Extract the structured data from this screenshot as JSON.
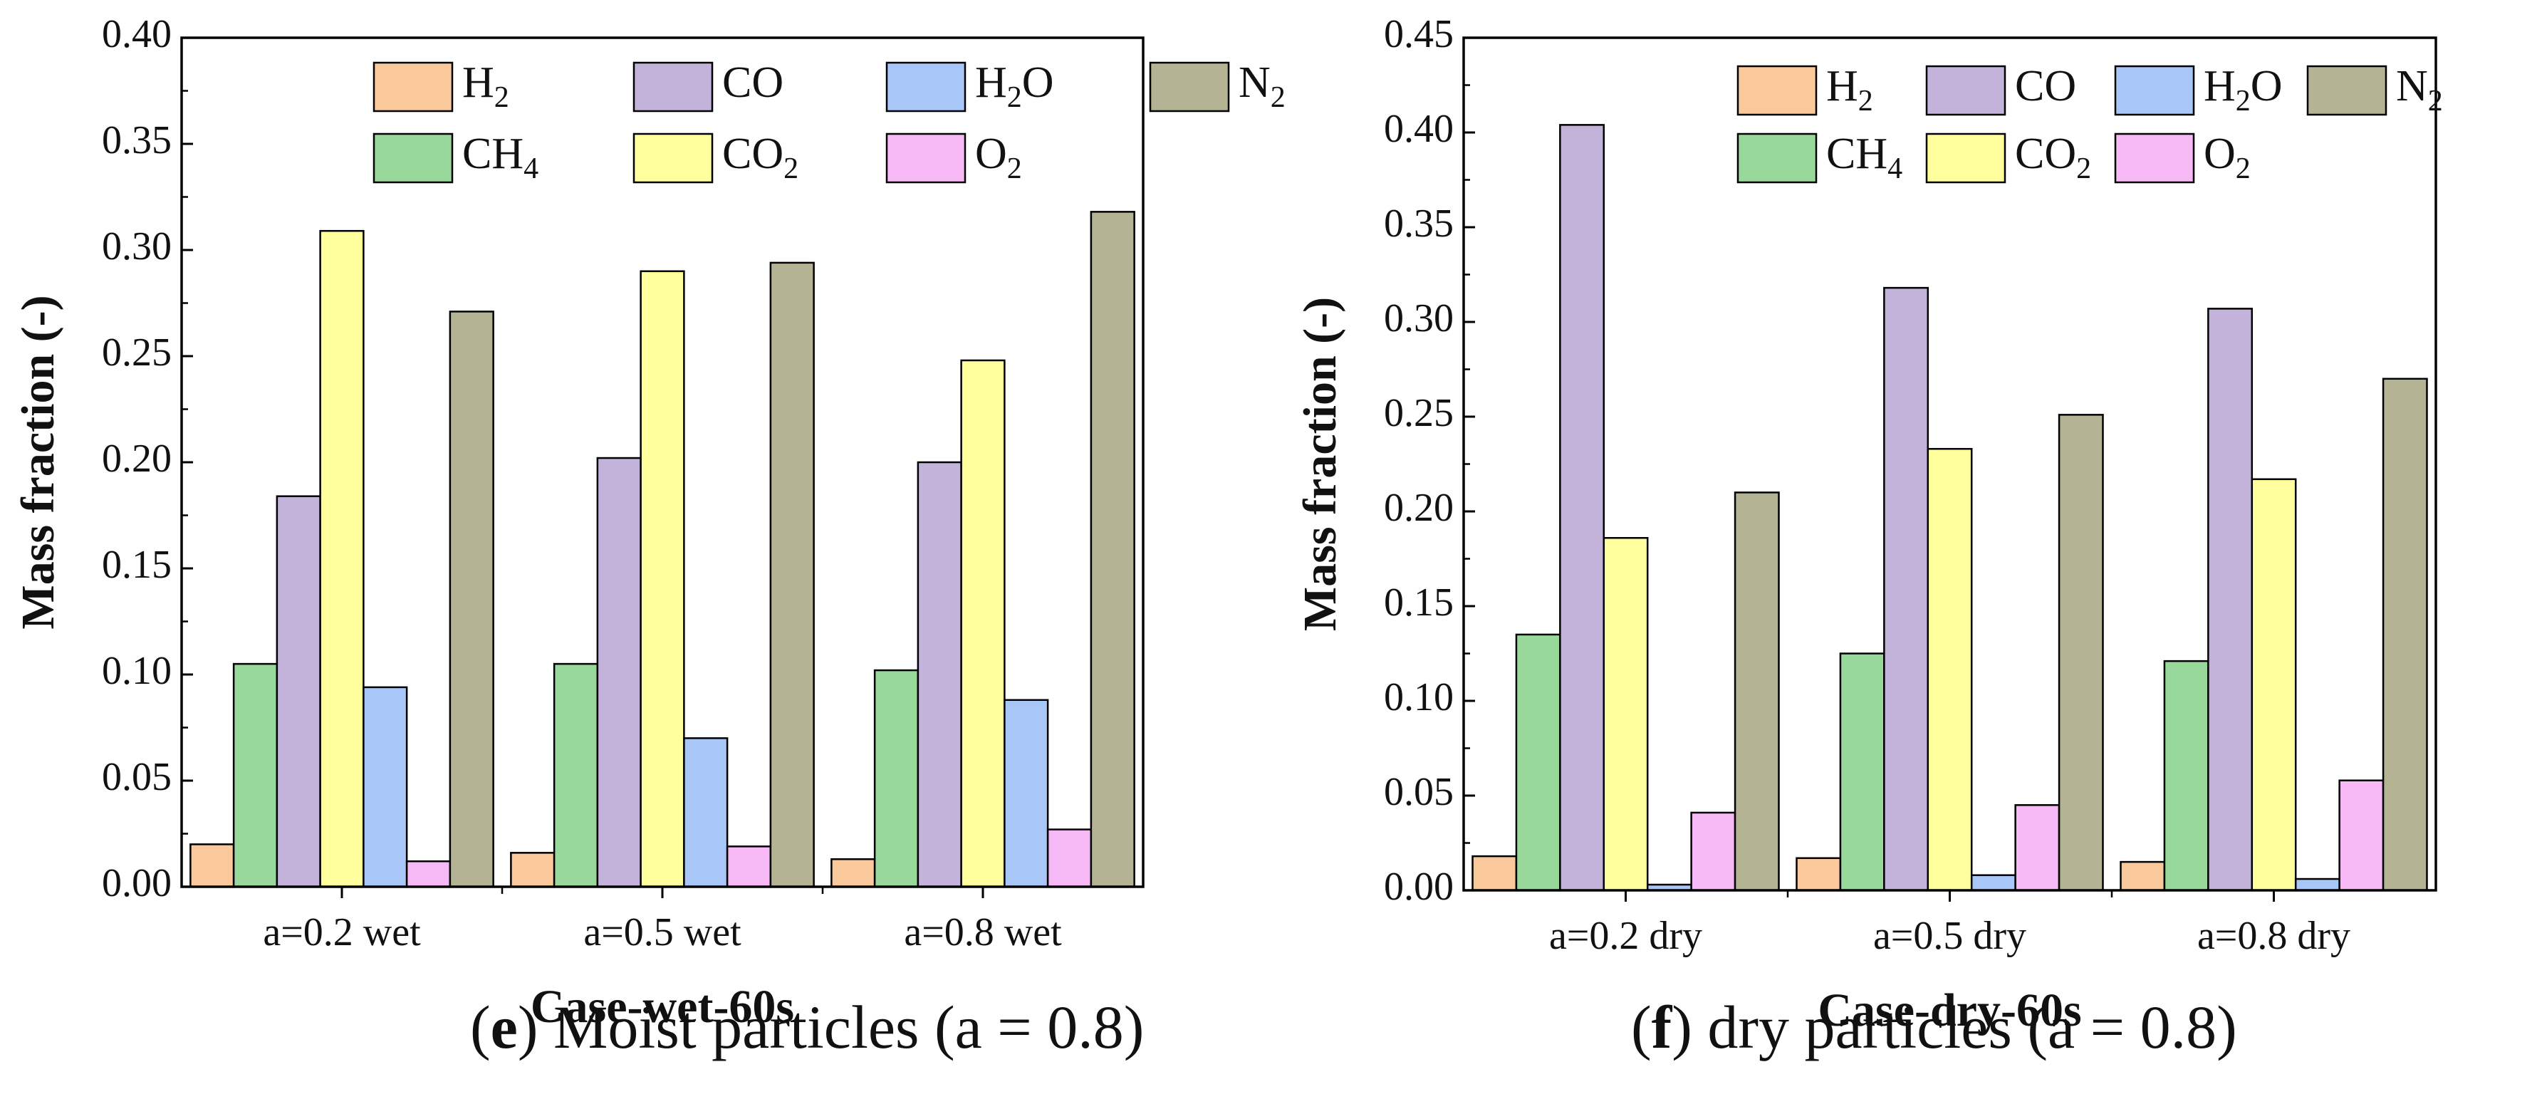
{
  "colors": {
    "H2": "#f9c89b",
    "CH4": "#98d89b",
    "CO": "#c3b3db",
    "CO2": "#ffff9e",
    "H2O": "#a8c6f7",
    "O2": "#f7b9f5",
    "N2": "#b4b393",
    "edge": "#000000"
  },
  "legend_labels": {
    "H2": {
      "base": "H",
      "sub": "2"
    },
    "CO": {
      "base": "CO",
      "sub": ""
    },
    "H2O": {
      "base": "H",
      "sub": "2",
      "tail": "O"
    },
    "N2": {
      "base": "N",
      "sub": "2"
    },
    "CH4": {
      "base": "CH",
      "sub": "4"
    },
    "CO2": {
      "base": "CO",
      "sub": "2"
    },
    "O2": {
      "base": "O",
      "sub": "2"
    }
  },
  "captions": {
    "e": {
      "letter": "e",
      "text": "Moist particles (a = 0.8)"
    },
    "f": {
      "letter": "f",
      "text": "dry particles (a = 0.8)"
    }
  },
  "chart_data": [
    {
      "id": "e",
      "type": "bar",
      "title": "",
      "xlabel": "Case-wet-60s",
      "ylabel": "Mass fraction (-)",
      "ylim": [
        0,
        0.4
      ],
      "yticks": [
        "0.00",
        "0.05",
        "0.10",
        "0.15",
        "0.20",
        "0.25",
        "0.30",
        "0.35",
        "0.40"
      ],
      "categories": [
        "a=0.2 wet",
        "a=0.5 wet",
        "a=0.8 wet"
      ],
      "legend_position": "top-right",
      "series": [
        {
          "key": "H2",
          "name": "H2",
          "values": [
            0.02,
            0.016,
            0.013
          ]
        },
        {
          "key": "CH4",
          "name": "CH4",
          "values": [
            0.105,
            0.105,
            0.102
          ]
        },
        {
          "key": "CO",
          "name": "CO",
          "values": [
            0.184,
            0.202,
            0.2
          ]
        },
        {
          "key": "CO2",
          "name": "CO2",
          "values": [
            0.309,
            0.29,
            0.248
          ]
        },
        {
          "key": "H2O",
          "name": "H2O",
          "values": [
            0.094,
            0.07,
            0.088
          ]
        },
        {
          "key": "O2",
          "name": "O2",
          "values": [
            0.012,
            0.019,
            0.027
          ]
        },
        {
          "key": "N2",
          "name": "N2",
          "values": [
            0.271,
            0.294,
            0.318
          ]
        }
      ]
    },
    {
      "id": "f",
      "type": "bar",
      "title": "",
      "xlabel": "Case-dry-60s",
      "ylabel": "Mass fraction (-)",
      "ylim": [
        0,
        0.45
      ],
      "yticks": [
        "0.00",
        "0.05",
        "0.10",
        "0.15",
        "0.20",
        "0.25",
        "0.30",
        "0.35",
        "0.40",
        "0.45"
      ],
      "categories": [
        "a=0.2 dry",
        "a=0.5 dry",
        "a=0.8 dry"
      ],
      "legend_position": "top-right",
      "series": [
        {
          "key": "H2",
          "name": "H2",
          "values": [
            0.018,
            0.017,
            0.015
          ]
        },
        {
          "key": "CH4",
          "name": "CH4",
          "values": [
            0.135,
            0.125,
            0.121
          ]
        },
        {
          "key": "CO",
          "name": "CO",
          "values": [
            0.404,
            0.318,
            0.307
          ]
        },
        {
          "key": "CO2",
          "name": "CO2",
          "values": [
            0.186,
            0.233,
            0.217
          ]
        },
        {
          "key": "H2O",
          "name": "H2O",
          "values": [
            0.003,
            0.008,
            0.006
          ]
        },
        {
          "key": "O2",
          "name": "O2",
          "values": [
            0.041,
            0.045,
            0.058
          ]
        },
        {
          "key": "N2",
          "name": "N2",
          "values": [
            0.21,
            0.251,
            0.27
          ]
        }
      ]
    }
  ]
}
